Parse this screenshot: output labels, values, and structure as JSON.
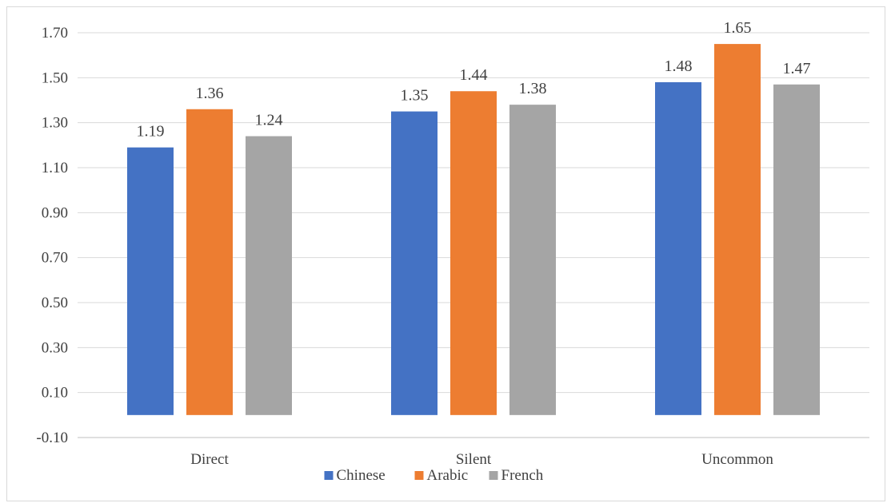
{
  "chart_data": {
    "type": "bar",
    "title": "",
    "xlabel": "",
    "ylabel": "",
    "categories": [
      "Direct",
      "Silent",
      "Uncommon"
    ],
    "series": [
      {
        "name": "Chinese",
        "color": "#4472c4",
        "values": [
          1.19,
          1.35,
          1.48
        ],
        "labels": [
          "1.19",
          "1.35",
          "1.48"
        ]
      },
      {
        "name": "Arabic",
        "color": "#ed7d31",
        "values": [
          1.36,
          1.44,
          1.65
        ],
        "labels": [
          "1.36",
          "1.44",
          "1.65"
        ]
      },
      {
        "name": "French",
        "color": "#a5a5a5",
        "values": [
          1.24,
          1.38,
          1.47
        ],
        "labels": [
          "1.24",
          "1.38",
          "1.47"
        ]
      }
    ],
    "ylim": [
      -0.1,
      1.7
    ],
    "yticks": [
      "1.70",
      "1.50",
      "1.30",
      "1.10",
      "0.90",
      "0.70",
      "0.50",
      "0.30",
      "0.10",
      "-0.10"
    ],
    "ytick_values": [
      1.7,
      1.5,
      1.3,
      1.1,
      0.9,
      0.7,
      0.5,
      0.3,
      0.1,
      -0.1
    ],
    "grid": true,
    "legend_position": "bottom"
  }
}
